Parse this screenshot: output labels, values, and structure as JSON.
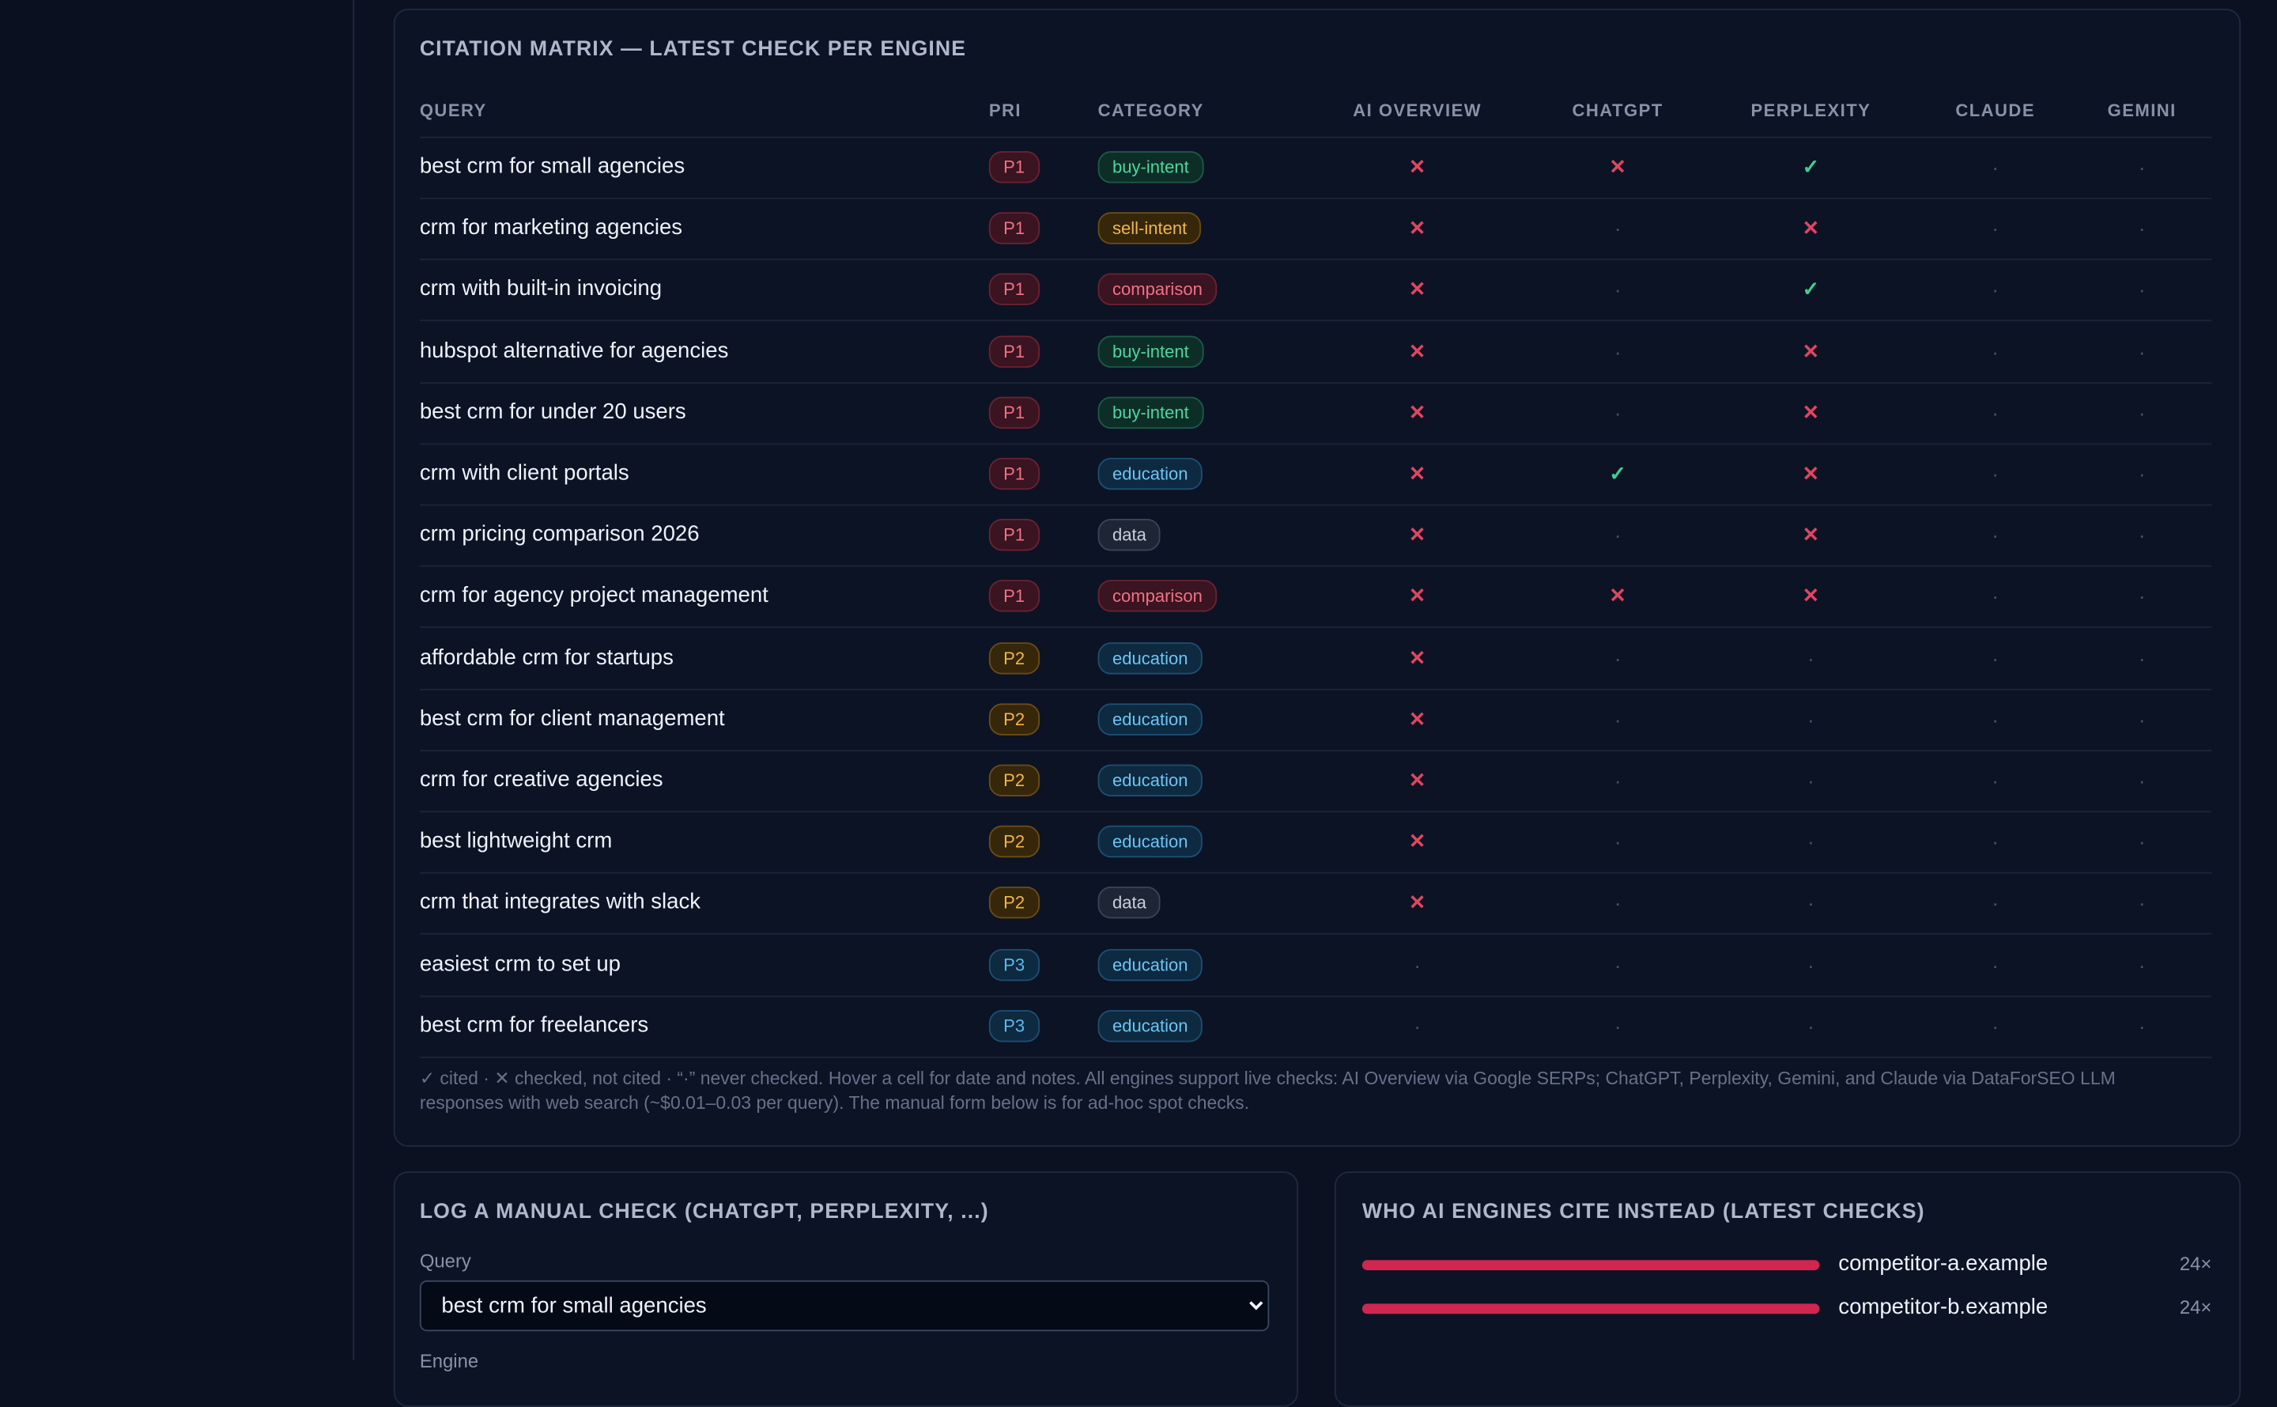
{
  "matrix": {
    "title": "CITATION MATRIX — LATEST CHECK PER ENGINE",
    "columns": [
      "QUERY",
      "PRI",
      "CATEGORY",
      "AI OVERVIEW",
      "CHATGPT",
      "PERPLEXITY",
      "CLAUDE",
      "GEMINI"
    ],
    "rows": [
      [
        "best crm for small agencies",
        "P1",
        "buy-intent",
        "✕",
        "✕",
        "✓",
        "·",
        "·"
      ],
      [
        "crm for marketing agencies",
        "P1",
        "sell-intent",
        "✕",
        "·",
        "✕",
        "·",
        "·"
      ],
      [
        "crm with built-in invoicing",
        "P1",
        "comparison",
        "✕",
        "·",
        "✓",
        "·",
        "·"
      ],
      [
        "hubspot alternative for agencies",
        "P1",
        "buy-intent",
        "✕",
        "·",
        "✕",
        "·",
        "·"
      ],
      [
        "best crm for under 20 users",
        "P1",
        "buy-intent",
        "✕",
        "·",
        "✕",
        "·",
        "·"
      ],
      [
        "crm with client portals",
        "P1",
        "education",
        "✕",
        "✓",
        "✕",
        "·",
        "·"
      ],
      [
        "crm pricing comparison 2026",
        "P1",
        "data",
        "✕",
        "·",
        "✕",
        "·",
        "·"
      ],
      [
        "crm for agency project management",
        "P1",
        "comparison",
        "✕",
        "✕",
        "✕",
        "·",
        "·"
      ],
      [
        "affordable crm for startups",
        "P2",
        "education",
        "✕",
        "·",
        "·",
        "·",
        "·"
      ],
      [
        "best crm for client management",
        "P2",
        "education",
        "✕",
        "·",
        "·",
        "·",
        "·"
      ],
      [
        "crm for creative agencies",
        "P2",
        "education",
        "✕",
        "·",
        "·",
        "·",
        "·"
      ],
      [
        "best lightweight crm",
        "P2",
        "education",
        "✕",
        "·",
        "·",
        "·",
        "·"
      ],
      [
        "crm that integrates with slack",
        "P2",
        "data",
        "✕",
        "·",
        "·",
        "·",
        "·"
      ],
      [
        "easiest crm to set up",
        "P3",
        "education",
        "·",
        "·",
        "·",
        "·",
        "·"
      ],
      [
        "best crm for freelancers",
        "P3",
        "education",
        "·",
        "·",
        "·",
        "·",
        "·"
      ]
    ],
    "footnote": "✓ cited · ✕ checked, not cited · “·” never checked. Hover a cell for date and notes. All engines support live checks: AI Overview via Google SERPs; ChatGPT, Perplexity, Gemini, and Claude via DataForSEO LLM responses with web search (~$0.01–0.03 per query). The manual form below is for ad-hoc spot checks."
  },
  "manual": {
    "title": "LOG A MANUAL CHECK (CHATGPT, PERPLEXITY, ...)",
    "query_label": "Query",
    "query_value": "best crm for small agencies",
    "engine_label": "Engine"
  },
  "competitors": {
    "title": "WHO AI ENGINES CITE INSTEAD (LATEST CHECKS)",
    "items": [
      {
        "domain": "competitor-a.example",
        "count": 24,
        "count_label": "24×"
      },
      {
        "domain": "competitor-b.example",
        "count": 24,
        "count_label": "24×"
      }
    ]
  }
}
